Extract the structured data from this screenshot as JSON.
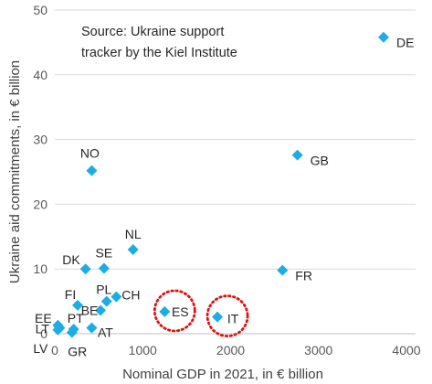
{
  "chart_data": {
    "type": "scatter",
    "title": "",
    "annotation_lines": [
      "Source: Ukraine support",
      "tracker by the Kiel Institute"
    ],
    "xlabel": "Nominal GDP in 2021, in € billion",
    "ylabel": "Ukraine aid commitments, in € billion",
    "xlim": [
      0,
      4000
    ],
    "ylim": [
      0,
      50
    ],
    "xticks": [
      0,
      1000,
      2000,
      3000,
      4000
    ],
    "yticks": [
      0,
      10,
      20,
      30,
      40,
      50
    ],
    "grid": "horizontal",
    "legend": "none",
    "marker_color": "#1BADE3",
    "highlight_color": "#E01010",
    "highlighted": [
      "ES",
      "IT"
    ],
    "points": [
      {
        "label": "DE",
        "x": 3740,
        "y": 45.8
      },
      {
        "label": "GB",
        "x": 2760,
        "y": 27.6
      },
      {
        "label": "FR",
        "x": 2590,
        "y": 9.8
      },
      {
        "label": "NO",
        "x": 420,
        "y": 25.2
      },
      {
        "label": "NL",
        "x": 890,
        "y": 13.0
      },
      {
        "label": "DK",
        "x": 350,
        "y": 10.0
      },
      {
        "label": "SE",
        "x": 560,
        "y": 10.1
      },
      {
        "label": "FI",
        "x": 260,
        "y": 4.4
      },
      {
        "label": "PL",
        "x": 590,
        "y": 5.0
      },
      {
        "label": "CH",
        "x": 700,
        "y": 5.7
      },
      {
        "label": "BE",
        "x": 520,
        "y": 3.6
      },
      {
        "label": "EE",
        "x": 35,
        "y": 1.3
      },
      {
        "label": "LT",
        "x": 55,
        "y": 0.9
      },
      {
        "label": "LV",
        "x": 35,
        "y": 0.6
      },
      {
        "label": "PT",
        "x": 215,
        "y": 0.7
      },
      {
        "label": "AT",
        "x": 420,
        "y": 0.9
      },
      {
        "label": "GR",
        "x": 195,
        "y": 0.2
      },
      {
        "label": "ES",
        "x": 1250,
        "y": 3.4
      },
      {
        "label": "IT",
        "x": 1850,
        "y": 2.6
      }
    ]
  }
}
